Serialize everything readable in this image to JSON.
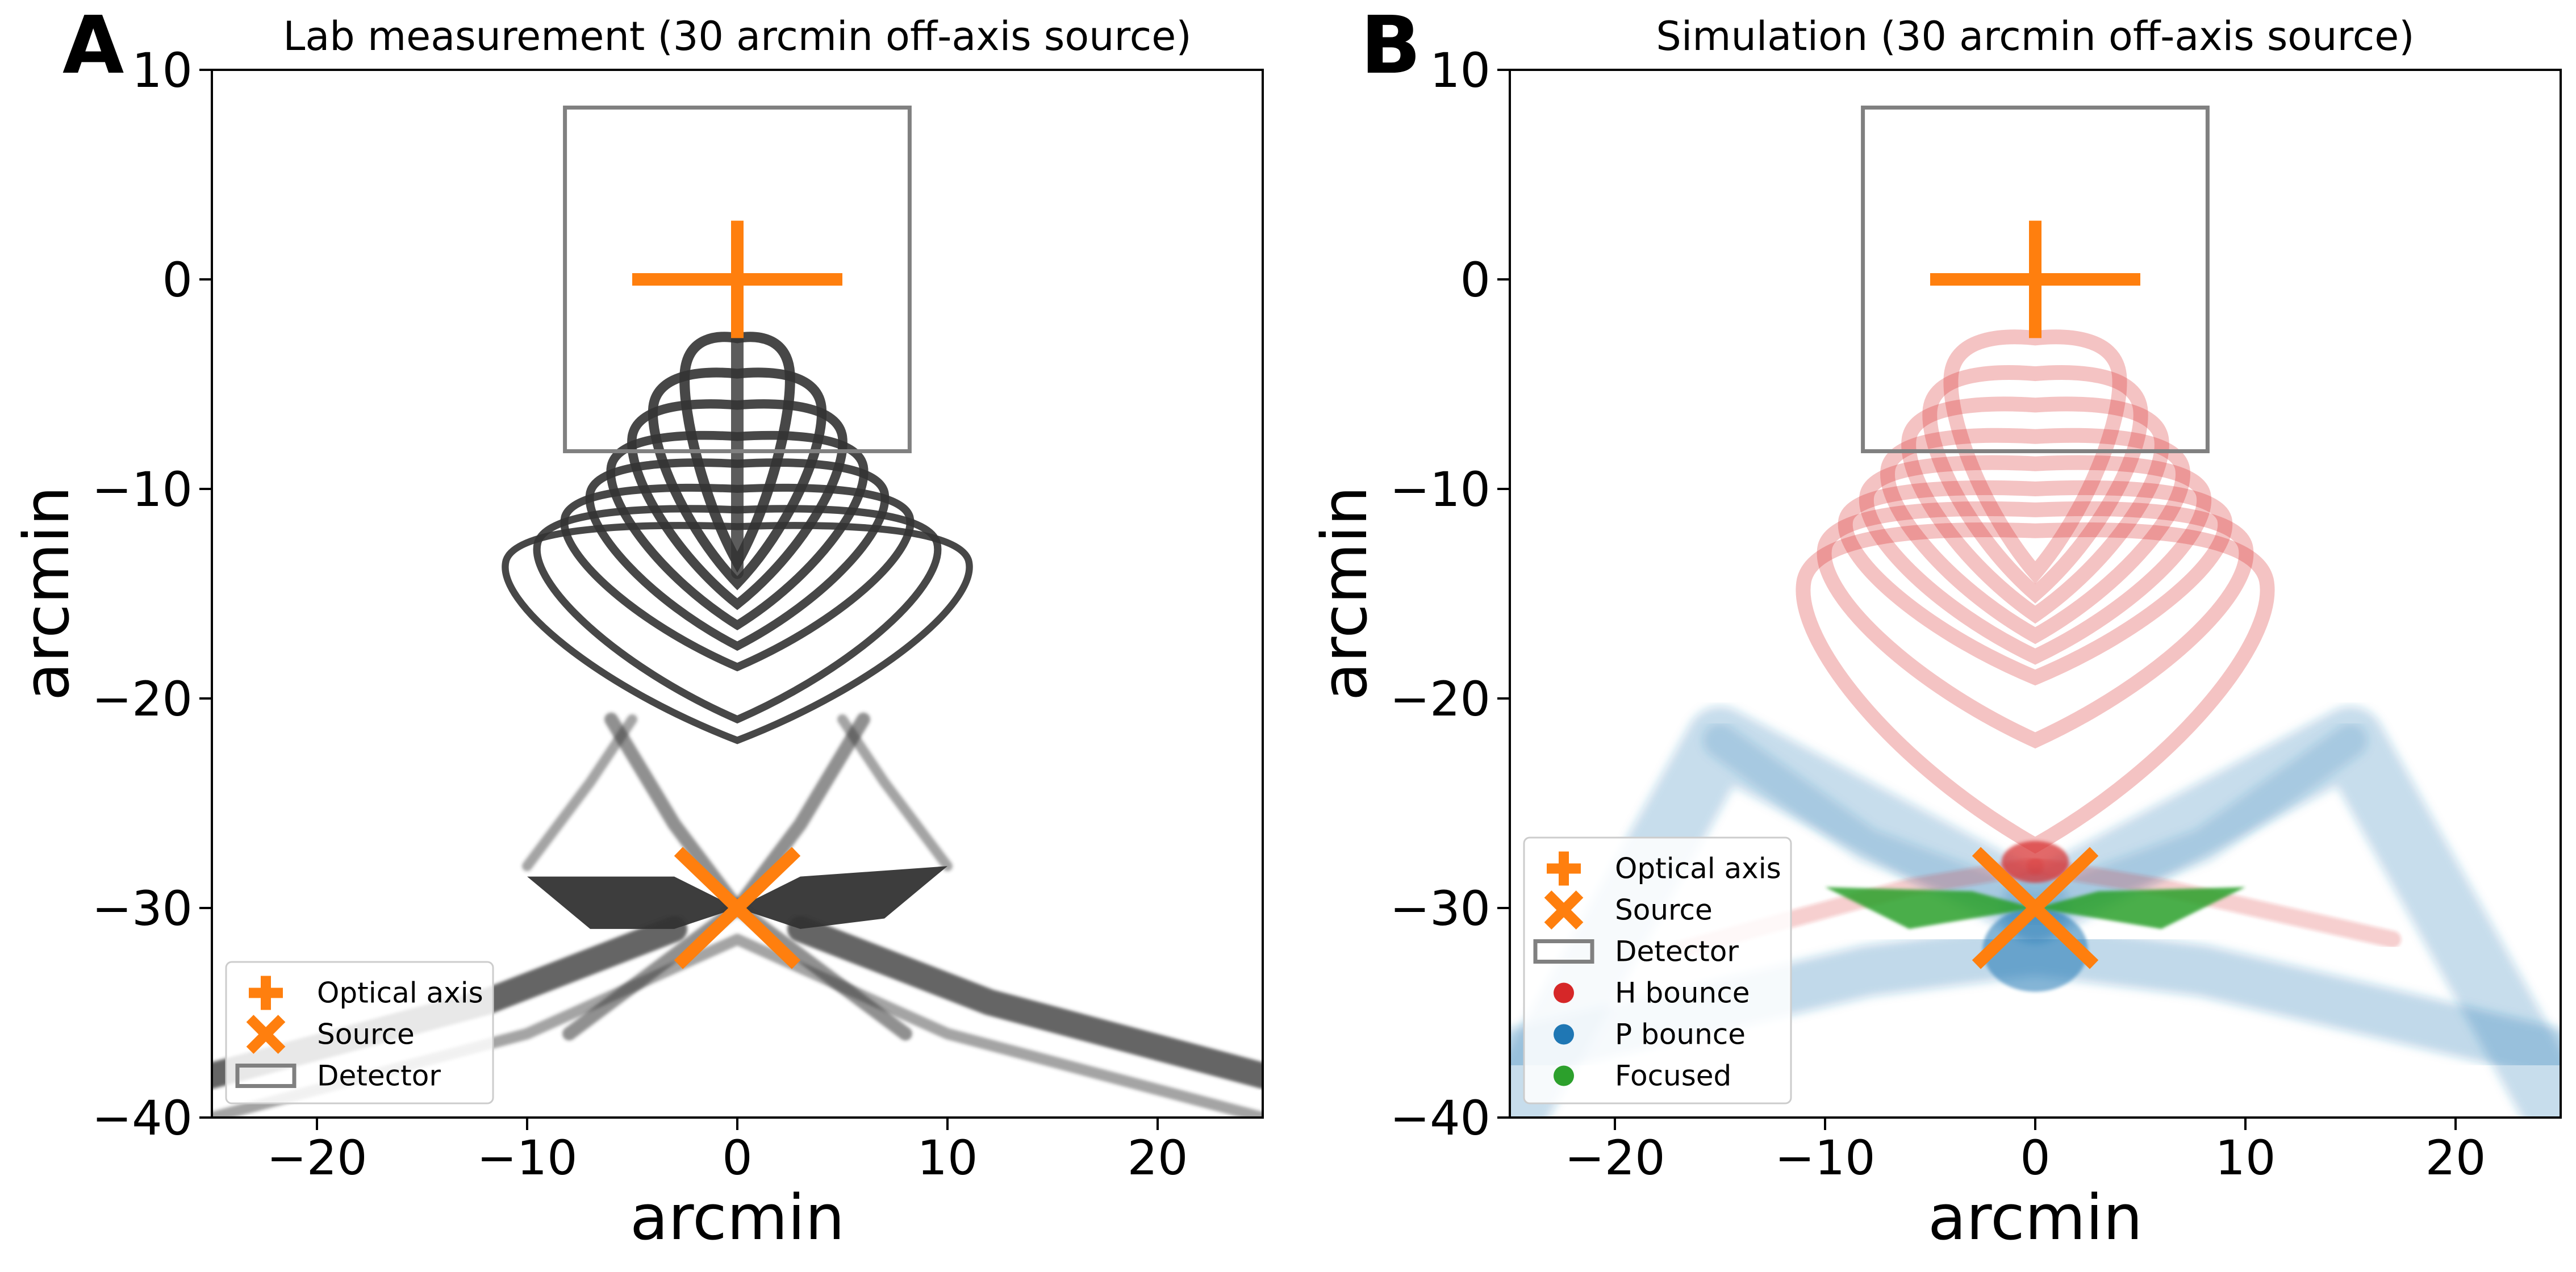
{
  "chart_data": [
    {
      "panel_label": "A",
      "type": "scatter",
      "title": "Lab measurement (30 arcmin off-axis source)",
      "xlabel": "arcmin",
      "ylabel": "arcmin",
      "xlim": [
        -25,
        25
      ],
      "ylim": [
        -40,
        10
      ],
      "xticks": [
        -20,
        -10,
        0,
        10,
        20
      ],
      "yticks": [
        10,
        0,
        -10,
        -20,
        -30,
        -40
      ],
      "xtick_labels": [
        "−20",
        "−10",
        "0",
        "10",
        "20"
      ],
      "ytick_labels": [
        "10",
        "0",
        "−10",
        "−20",
        "−30",
        "−40"
      ],
      "grid": false,
      "legend_position": "lower-left",
      "markers": {
        "optical_axis": {
          "label": "Optical axis",
          "x": 0,
          "y": 0
        },
        "source": {
          "label": "Source",
          "x": 0,
          "y": -30
        }
      },
      "detector": {
        "label": "Detector",
        "x": [
          -8.2,
          8.2
        ],
        "y": [
          -8.2,
          8.2
        ]
      },
      "series": [
        {
          "name": "",
          "color": "#333333",
          "features": {
            "ring_arc_outer_x": [
              2.5,
              4.0,
              5.0,
              6.0,
              7.0,
              8.2,
              9.5,
              11.0
            ],
            "ring_arc_top_y": [
              -2.8,
              -4.5,
              -6.0,
              -7.5,
              -8.8,
              -10.0,
              -11.0,
              -11.8
            ],
            "ring_arc_bottom_y": [
              -13.5,
              -14.5,
              -15.5,
              -16.5,
              -17.5,
              -18.5,
              -21.0,
              -22.0
            ],
            "central_blob_x": [
              -10,
              10
            ],
            "central_blob_y": [
              -32,
              -27
            ],
            "lower_branches": [
              [
                -25,
                -38
              ],
              [
                -8,
                -31
              ],
              [
                0,
                -30
              ],
              [
                8,
                -31
              ],
              [
                25,
                -38
              ]
            ]
          }
        }
      ]
    },
    {
      "panel_label": "B",
      "type": "scatter",
      "title": "Simulation (30 arcmin off-axis source)",
      "xlabel": "arcmin",
      "ylabel": "arcmin",
      "xlim": [
        -25,
        25
      ],
      "ylim": [
        -40,
        10
      ],
      "xticks": [
        -20,
        -10,
        0,
        10,
        20
      ],
      "yticks": [
        10,
        0,
        -10,
        -20,
        -30,
        -40
      ],
      "xtick_labels": [
        "−20",
        "−10",
        "0",
        "10",
        "20"
      ],
      "ytick_labels": [
        "10",
        "0",
        "−10",
        "−20",
        "−30",
        "−40"
      ],
      "grid": false,
      "legend_position": "lower-left",
      "markers": {
        "optical_axis": {
          "label": "Optical axis",
          "x": 0,
          "y": 0
        },
        "source": {
          "label": "Source",
          "x": 0,
          "y": -30
        }
      },
      "detector": {
        "label": "Detector",
        "x": [
          -8.2,
          8.2
        ],
        "y": [
          -8.2,
          8.2
        ]
      },
      "series": [
        {
          "name": "H bounce",
          "color": "#d62728",
          "features": {
            "ring_arc_outer_x": [
              4.0,
              5.0,
              6.0,
              7.0,
              8.0,
              9.0,
              10.0,
              11.0
            ],
            "ring_arc_top_y": [
              -2.8,
              -4.5,
              -6.0,
              -7.5,
              -8.8,
              -10.0,
              -11.0,
              -12.0
            ],
            "ring_arc_bottom_y": [
              -14.0,
              -15.0,
              -16.0,
              -17.0,
              -18.0,
              -19.0,
              -22.0,
              -27.0
            ],
            "tails": [
              [
                -17,
                -32
              ],
              [
                17,
                -31.5
              ]
            ]
          }
        },
        {
          "name": "P bounce",
          "color": "#1f77b4",
          "features": {
            "x_arms": [
              [
                -25,
                -40
              ],
              [
                -15,
                -22
              ],
              [
                0,
                -30
              ],
              [
                15,
                -22
              ],
              [
                25,
                -40
              ]
            ],
            "lower_fan": [
              [
                -25,
                -37
              ],
              [
                -8,
                -33
              ],
              [
                0,
                -32
              ],
              [
                8,
                -33
              ],
              [
                25,
                -37
              ]
            ]
          }
        },
        {
          "name": "Focused",
          "color": "#2ca02c",
          "features": {
            "blob_x": [
              -10,
              10
            ],
            "blob_y": [
              -31.5,
              -28.5
            ]
          }
        }
      ]
    }
  ],
  "colors": {
    "marker": "#ff7f0e",
    "detector": "#808080",
    "lab": "#333333",
    "h_bounce": "#d62728",
    "p_bounce": "#1f77b4",
    "focused": "#2ca02c"
  },
  "legend_icons": {
    "optical_axis": "plus-marker",
    "source": "x-marker",
    "detector": "rectangle-outline",
    "h_bounce": "red-dot",
    "p_bounce": "blue-dot",
    "focused": "green-dot"
  }
}
